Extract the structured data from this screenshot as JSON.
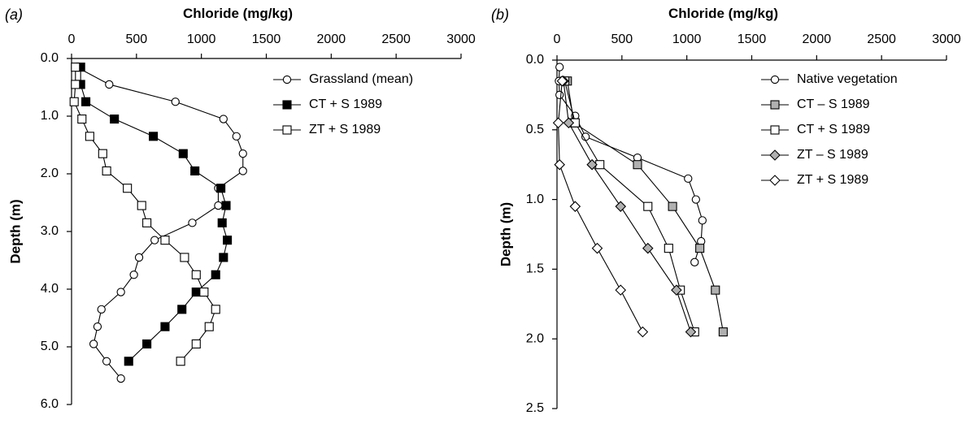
{
  "chart_data": [
    {
      "type": "line",
      "panel_label": "(a)",
      "xlabel": "Chloride (mg/kg)",
      "ylabel": "Depth (m)",
      "xlim": [
        0,
        3000
      ],
      "ylim": [
        0,
        6
      ],
      "x_axis_position": "top",
      "y_inverted": true,
      "x_ticks": [
        "0",
        "500",
        "1000",
        "1500",
        "2000",
        "2500",
        "3000"
      ],
      "y_ticks": [
        "0.0",
        "1.0",
        "2.0",
        "3.0",
        "4.0",
        "5.0",
        "6.0"
      ],
      "grid": false,
      "legend_position": "top-right",
      "series": [
        {
          "name": "Grassland (mean)",
          "marker": "circle",
          "fill": "#ffffff",
          "points": [
            {
              "x": 40,
              "y": 0.15
            },
            {
              "x": 290,
              "y": 0.45
            },
            {
              "x": 800,
              "y": 0.75
            },
            {
              "x": 1170,
              "y": 1.05
            },
            {
              "x": 1270,
              "y": 1.35
            },
            {
              "x": 1320,
              "y": 1.65
            },
            {
              "x": 1320,
              "y": 1.95
            },
            {
              "x": 1130,
              "y": 2.25
            },
            {
              "x": 1130,
              "y": 2.55
            },
            {
              "x": 930,
              "y": 2.85
            },
            {
              "x": 640,
              "y": 3.15
            },
            {
              "x": 520,
              "y": 3.45
            },
            {
              "x": 480,
              "y": 3.75
            },
            {
              "x": 380,
              "y": 4.05
            },
            {
              "x": 230,
              "y": 4.35
            },
            {
              "x": 200,
              "y": 4.65
            },
            {
              "x": 170,
              "y": 4.95
            },
            {
              "x": 270,
              "y": 5.25
            },
            {
              "x": 380,
              "y": 5.55
            }
          ]
        },
        {
          "name": "CT + S 1989",
          "marker": "square",
          "fill": "#000000",
          "points": [
            {
              "x": 70,
              "y": 0.15
            },
            {
              "x": 70,
              "y": 0.45
            },
            {
              "x": 110,
              "y": 0.75
            },
            {
              "x": 330,
              "y": 1.05
            },
            {
              "x": 630,
              "y": 1.35
            },
            {
              "x": 860,
              "y": 1.65
            },
            {
              "x": 950,
              "y": 1.95
            },
            {
              "x": 1150,
              "y": 2.25
            },
            {
              "x": 1190,
              "y": 2.55
            },
            {
              "x": 1160,
              "y": 2.85
            },
            {
              "x": 1200,
              "y": 3.15
            },
            {
              "x": 1170,
              "y": 3.45
            },
            {
              "x": 1110,
              "y": 3.75
            },
            {
              "x": 960,
              "y": 4.05
            },
            {
              "x": 850,
              "y": 4.35
            },
            {
              "x": 720,
              "y": 4.65
            },
            {
              "x": 580,
              "y": 4.95
            },
            {
              "x": 440,
              "y": 5.25
            }
          ]
        },
        {
          "name": "ZT + S 1989",
          "marker": "square",
          "fill": "#ffffff",
          "points": [
            {
              "x": 30,
              "y": 0.15
            },
            {
              "x": 30,
              "y": 0.45
            },
            {
              "x": 20,
              "y": 0.75
            },
            {
              "x": 80,
              "y": 1.05
            },
            {
              "x": 140,
              "y": 1.35
            },
            {
              "x": 240,
              "y": 1.65
            },
            {
              "x": 270,
              "y": 1.95
            },
            {
              "x": 430,
              "y": 2.25
            },
            {
              "x": 540,
              "y": 2.55
            },
            {
              "x": 580,
              "y": 2.85
            },
            {
              "x": 720,
              "y": 3.15
            },
            {
              "x": 870,
              "y": 3.45
            },
            {
              "x": 960,
              "y": 3.75
            },
            {
              "x": 1020,
              "y": 4.05
            },
            {
              "x": 1110,
              "y": 4.35
            },
            {
              "x": 1060,
              "y": 4.65
            },
            {
              "x": 960,
              "y": 4.95
            },
            {
              "x": 840,
              "y": 5.25
            }
          ]
        }
      ]
    },
    {
      "type": "line",
      "panel_label": "(b)",
      "xlabel": "Chloride (mg/kg)",
      "ylabel": "Depth (m)",
      "xlim": [
        0,
        3000
      ],
      "ylim": [
        0,
        2.5
      ],
      "x_axis_position": "top",
      "y_inverted": true,
      "x_ticks": [
        "0",
        "500",
        "1000",
        "1500",
        "2000",
        "2500",
        "3000"
      ],
      "y_ticks": [
        "0.0",
        "0.5",
        "1.0",
        "1.5",
        "2.0",
        "2.5"
      ],
      "grid": false,
      "legend_position": "top-right",
      "series": [
        {
          "name": "Native vegetation",
          "marker": "circle",
          "fill": "#ffffff",
          "points": [
            {
              "x": 20,
              "y": 0.05
            },
            {
              "x": 15,
              "y": 0.15
            },
            {
              "x": 20,
              "y": 0.25
            },
            {
              "x": 140,
              "y": 0.4
            },
            {
              "x": 220,
              "y": 0.55
            },
            {
              "x": 620,
              "y": 0.7
            },
            {
              "x": 1010,
              "y": 0.85
            },
            {
              "x": 1070,
              "y": 1.0
            },
            {
              "x": 1120,
              "y": 1.15
            },
            {
              "x": 1110,
              "y": 1.3
            },
            {
              "x": 1060,
              "y": 1.45
            }
          ]
        },
        {
          "name": "CT – S 1989",
          "marker": "square",
          "fill": "#b0b0b0",
          "points": [
            {
              "x": 80,
              "y": 0.15
            },
            {
              "x": 130,
              "y": 0.45
            },
            {
              "x": 620,
              "y": 0.75
            },
            {
              "x": 890,
              "y": 1.05
            },
            {
              "x": 1100,
              "y": 1.35
            },
            {
              "x": 1220,
              "y": 1.65
            },
            {
              "x": 1280,
              "y": 1.95
            }
          ]
        },
        {
          "name": "CT + S 1989",
          "marker": "square",
          "fill": "#ffffff",
          "points": [
            {
              "x": 60,
              "y": 0.15
            },
            {
              "x": 140,
              "y": 0.45
            },
            {
              "x": 330,
              "y": 0.75
            },
            {
              "x": 700,
              "y": 1.05
            },
            {
              "x": 860,
              "y": 1.35
            },
            {
              "x": 950,
              "y": 1.65
            },
            {
              "x": 1060,
              "y": 1.95
            }
          ]
        },
        {
          "name": "ZT – S 1989",
          "marker": "diamond",
          "fill": "#b0b0b0",
          "points": [
            {
              "x": 50,
              "y": 0.15
            },
            {
              "x": 90,
              "y": 0.45
            },
            {
              "x": 270,
              "y": 0.75
            },
            {
              "x": 490,
              "y": 1.05
            },
            {
              "x": 700,
              "y": 1.35
            },
            {
              "x": 920,
              "y": 1.65
            },
            {
              "x": 1030,
              "y": 1.95
            }
          ]
        },
        {
          "name": "ZT + S 1989",
          "marker": "diamond",
          "fill": "#ffffff",
          "points": [
            {
              "x": 40,
              "y": 0.15
            },
            {
              "x": 10,
              "y": 0.45
            },
            {
              "x": 20,
              "y": 0.75
            },
            {
              "x": 140,
              "y": 1.05
            },
            {
              "x": 310,
              "y": 1.35
            },
            {
              "x": 490,
              "y": 1.65
            },
            {
              "x": 660,
              "y": 1.95
            }
          ]
        }
      ]
    }
  ]
}
